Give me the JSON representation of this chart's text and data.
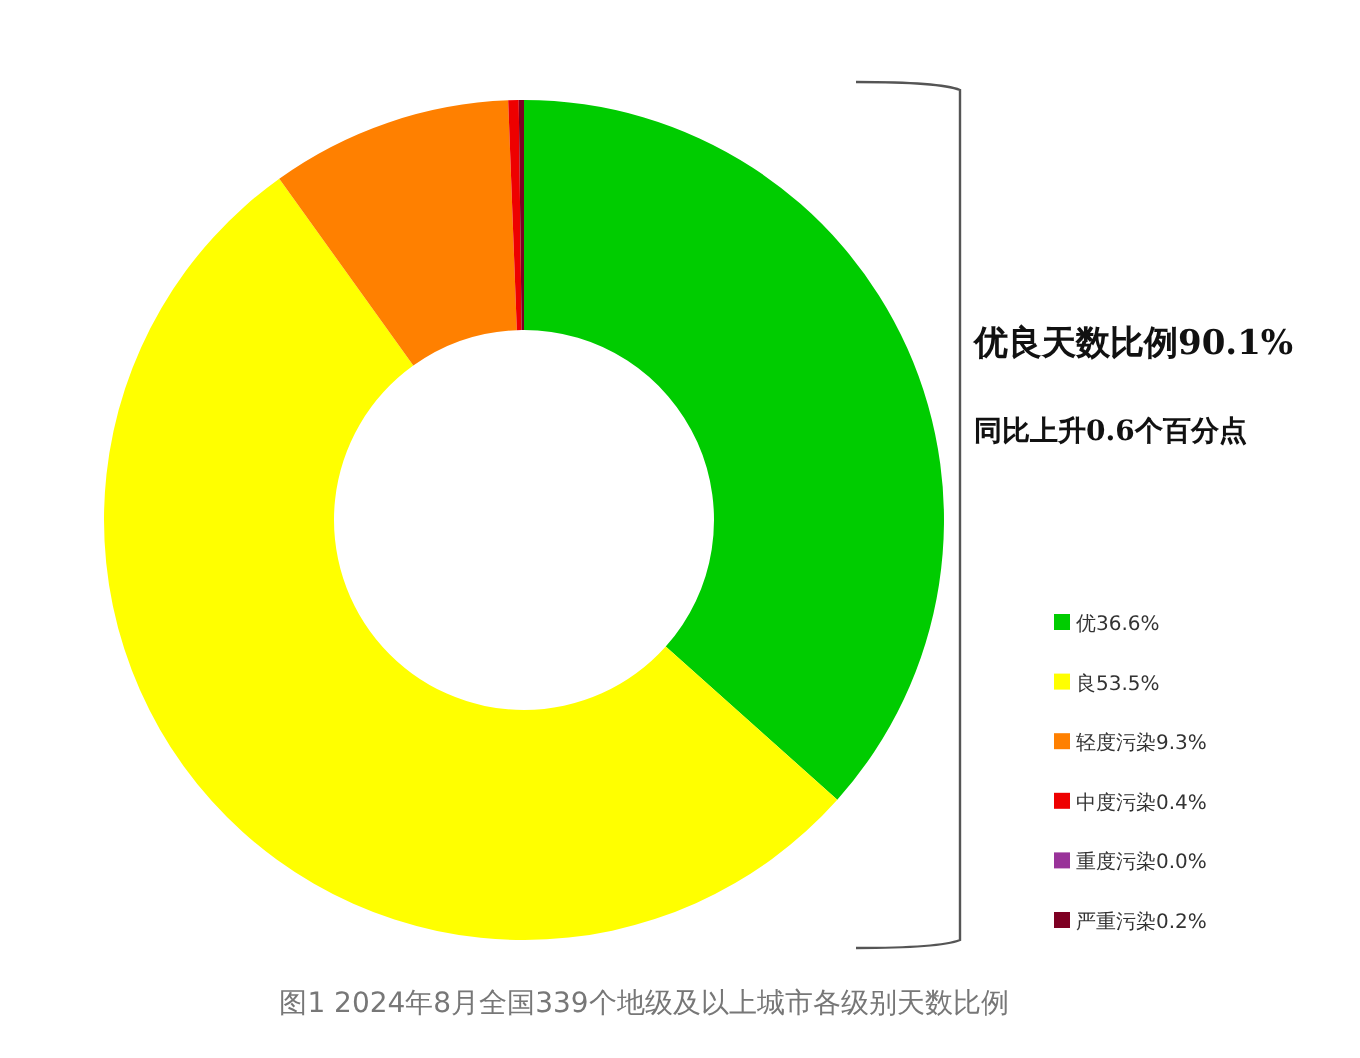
{
  "chart_data": {
    "type": "donut",
    "categories": [
      "优",
      "良",
      "轻度污染",
      "中度污染",
      "重度污染",
      "严重污染"
    ],
    "values": [
      36.6,
      53.5,
      9.3,
      0.4,
      0.0,
      0.2
    ],
    "value_labels": [
      "36.6%",
      "53.5%",
      "9.3%",
      "0.4%",
      "0.0%",
      "0.2%"
    ],
    "colors": [
      "#00cc00",
      "#ffff00",
      "#ff8000",
      "#ee0000",
      "#993399",
      "#7e0023"
    ],
    "legend": "right",
    "annotations": [
      "优良天数比例90.1%",
      "同比上升0.6个百分点",
      "图1  2024年8月全国339个地级及以上城市各级别天数比例"
    ]
  }
}
